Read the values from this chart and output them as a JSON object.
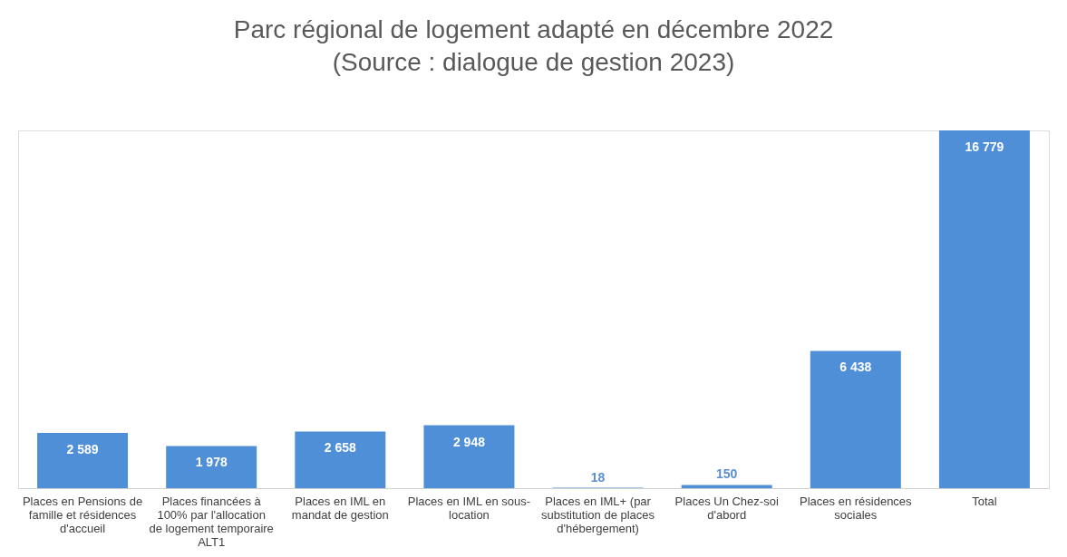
{
  "chart_data": {
    "type": "bar",
    "title": "Parc régional de logement adapté en décembre 2022",
    "subtitle": "(Source : dialogue de gestion 2023)",
    "categories": [
      "Places en Pensions de famille et résidences d'accueil",
      "Places financées à 100% par l'allocation de logement temporaire ALT1",
      "Places en IML en mandat de gestion",
      "Places en IML en sous-location",
      "Places en IML+ (par substitution de places d'hébergement)",
      "Places Un Chez-soi d'abord",
      "Places en résidences sociales",
      "Total"
    ],
    "values": [
      2589,
      1978,
      2658,
      2948,
      18,
      150,
      6438,
      16779
    ],
    "value_labels": [
      "2 589",
      "1 978",
      "2 658",
      "2 948",
      "18",
      "150",
      "6 438",
      "16 779"
    ],
    "color": "#4f8fd8",
    "grid": false
  }
}
